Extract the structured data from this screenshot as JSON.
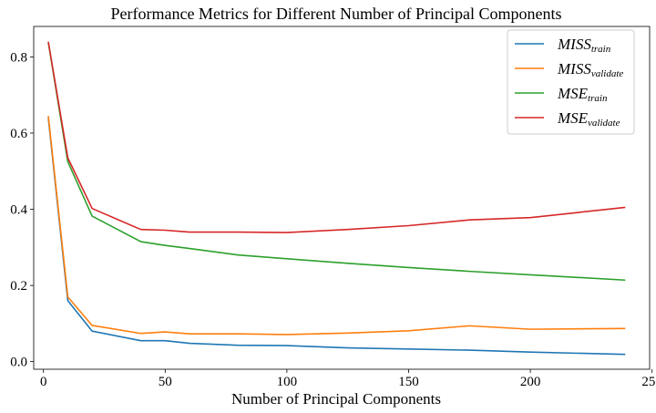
{
  "chart_data": {
    "type": "line",
    "title": "Performance Metrics for Different Number of Principal Components",
    "xlabel": "Number of Principal Components",
    "ylabel": "",
    "xlim": [
      -4,
      249
    ],
    "ylim": [
      -0.02,
      0.88
    ],
    "xticks": [
      0,
      50,
      100,
      150,
      200,
      250
    ],
    "yticks": [
      0.0,
      0.2,
      0.4,
      0.6,
      0.8
    ],
    "xtick_labels": [
      "0",
      "50",
      "100",
      "150",
      "200",
      "250"
    ],
    "ytick_labels": [
      "0.0",
      "0.2",
      "0.4",
      "0.6",
      "0.8"
    ],
    "grid": false,
    "legend_position": "top-right",
    "x": [
      2,
      10,
      20,
      40,
      50,
      60,
      80,
      100,
      125,
      150,
      175,
      200,
      239
    ],
    "series": [
      {
        "name": "MISS",
        "subscript": "train",
        "color": "#1f77b4",
        "values": [
          0.64,
          0.16,
          0.08,
          0.055,
          0.055,
          0.048,
          0.043,
          0.042,
          0.036,
          0.033,
          0.03,
          0.025,
          0.019
        ]
      },
      {
        "name": "MISS",
        "subscript": "validate",
        "color": "#ff7f0e",
        "values": [
          0.645,
          0.17,
          0.095,
          0.074,
          0.078,
          0.073,
          0.073,
          0.071,
          0.075,
          0.081,
          0.094,
          0.085,
          0.087
        ]
      },
      {
        "name": "MSE",
        "subscript": "train",
        "color": "#2ca02c",
        "values": [
          0.838,
          0.525,
          0.382,
          0.315,
          0.305,
          0.297,
          0.28,
          0.27,
          0.258,
          0.247,
          0.237,
          0.228,
          0.214
        ]
      },
      {
        "name": "MSE",
        "subscript": "validate",
        "color": "#d62728",
        "values": [
          0.84,
          0.535,
          0.402,
          0.347,
          0.345,
          0.34,
          0.34,
          0.339,
          0.347,
          0.357,
          0.372,
          0.378,
          0.405
        ]
      }
    ]
  }
}
